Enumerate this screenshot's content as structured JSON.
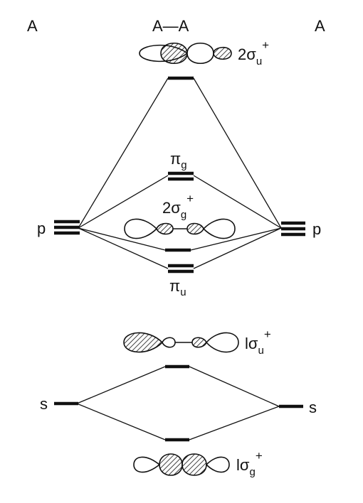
{
  "title_left": "A",
  "title_center": "A—A",
  "title_right": "A",
  "label_p_left": "p",
  "label_p_right": "p",
  "label_s_left": "s",
  "label_s_right": "s",
  "orbitals": {
    "sigma2u": {
      "prefix": "2",
      "greek": "σ",
      "sub": "u",
      "sup": "+"
    },
    "pi_g": {
      "greek": "π",
      "sub": "g"
    },
    "sigma2g": {
      "prefix": "2",
      "greek": "σ",
      "sub": "g",
      "sup": "+"
    },
    "pi_u": {
      "greek": "π",
      "sub": "u"
    },
    "sigma1u": {
      "prefix": "l",
      "greek": "σ",
      "sub": "u",
      "sup": "+"
    },
    "sigma1g": {
      "prefix": "l",
      "greek": "σ",
      "sub": "g",
      "sup": "+"
    }
  },
  "colors": {
    "ink": "#111111",
    "background": "#ffffff"
  }
}
